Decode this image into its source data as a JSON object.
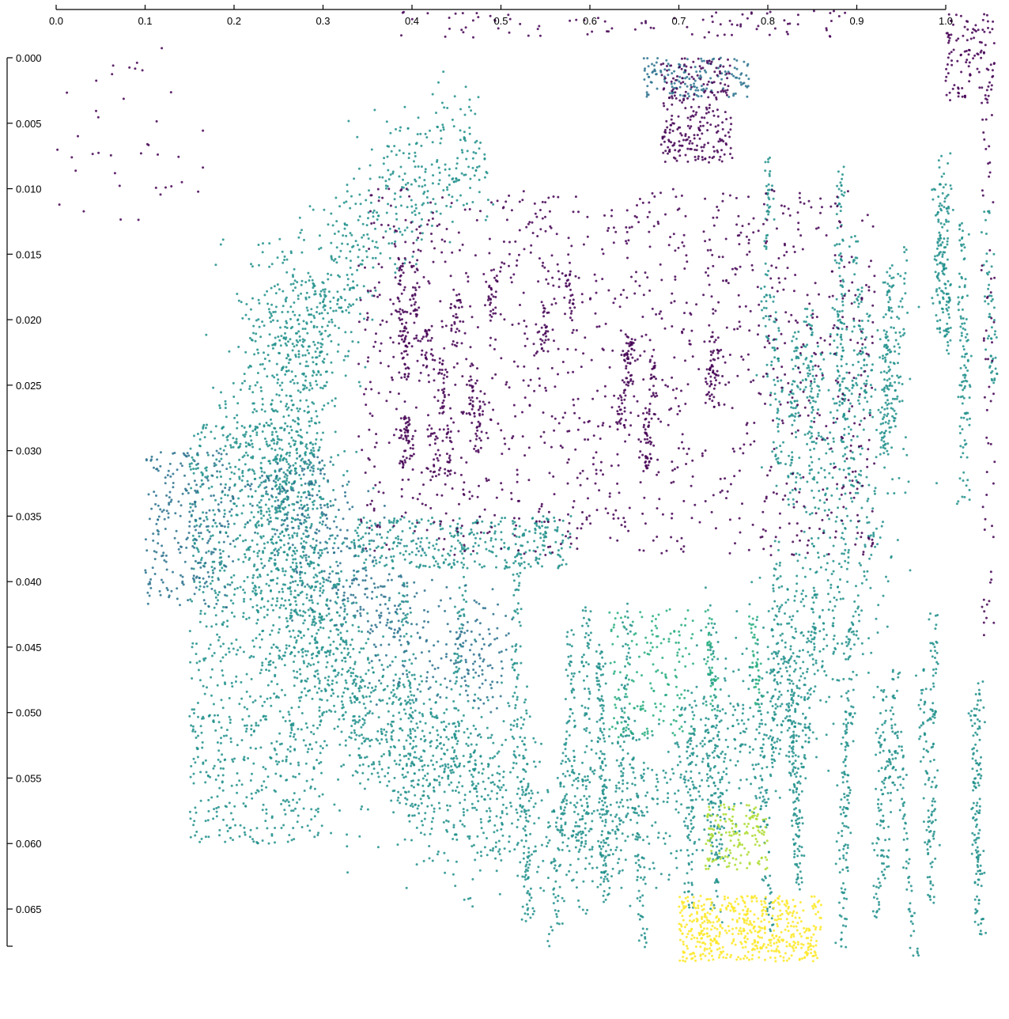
{
  "chart_data": {
    "type": "scatter",
    "title": "",
    "xlabel": "",
    "ylabel": "",
    "x_axis_position": "top",
    "y_axis_inverted": true,
    "xlim": [
      0.0,
      1.055
    ],
    "ylim": [
      -0.0038,
      0.0697
    ],
    "x_ticks": [
      "0.0",
      "0.1",
      "0.2",
      "0.3",
      "0.4",
      "0.5",
      "0.6",
      "0.7",
      "0.8",
      "0.9",
      "1.0"
    ],
    "y_ticks": [
      "0.000",
      "0.005",
      "0.010",
      "0.015",
      "0.020",
      "0.025",
      "0.030",
      "0.035",
      "0.040",
      "0.045",
      "0.050",
      "0.055",
      "0.060",
      "0.065"
    ],
    "grid": false,
    "legend": "none",
    "colormap": "viridis",
    "colors": {
      "dark": "#440154",
      "purple": "#472d7b",
      "blue": "#3b528b",
      "teal_blue": "#2c728e",
      "teal": "#21918c",
      "green": "#28ae80",
      "light_green": "#5ec962",
      "lime": "#addc30",
      "yellow": "#fde725"
    },
    "series": [
      {
        "color": "#21918c",
        "clusters": [
          {
            "shape": "arc",
            "cx": 0.565,
            "cy": 0.0305,
            "rx": 0.325,
            "ry": 0.0285,
            "a0": 150,
            "a1": 380,
            "spread": 0.006,
            "n": 2200
          },
          {
            "shape": "arc",
            "cx": 0.53,
            "cy": 0.0305,
            "rx": 0.27,
            "ry": 0.024,
            "a0": 100,
            "a1": 265,
            "spread": 0.005,
            "n": 1300
          },
          {
            "shape": "streaks",
            "x0": 0.33,
            "x1": 1.05,
            "y0": 0.036,
            "y1": 0.069,
            "len": 0.018,
            "count": 28,
            "n": 2000
          },
          {
            "shape": "streaks",
            "x0": 0.78,
            "x1": 1.05,
            "y0": 0.004,
            "y1": 0.035,
            "len": 0.014,
            "count": 16,
            "n": 900
          },
          {
            "shape": "box",
            "x0": 0.15,
            "x1": 0.3,
            "y0": 0.028,
            "y1": 0.06,
            "n": 900
          },
          {
            "shape": "box",
            "x0": 0.33,
            "x1": 0.58,
            "y0": 0.035,
            "y1": 0.039,
            "n": 350
          }
        ]
      },
      {
        "color": "#2c728e",
        "clusters": [
          {
            "shape": "arc",
            "cx": 0.56,
            "cy": 0.025,
            "rx": 0.31,
            "ry": 0.022,
            "a0": 195,
            "a1": 260,
            "spread": 0.004,
            "n": 500
          },
          {
            "shape": "box",
            "x0": 0.1,
            "x1": 0.2,
            "y0": 0.03,
            "y1": 0.042,
            "n": 260
          },
          {
            "shape": "box",
            "x0": 0.66,
            "x1": 0.78,
            "y0": 0.0,
            "y1": 0.003,
            "n": 150
          }
        ]
      },
      {
        "color": "#440154",
        "clusters": [
          {
            "shape": "box",
            "x0": 0.34,
            "x1": 0.92,
            "y0": 0.01,
            "y1": 0.038,
            "n": 1300
          },
          {
            "shape": "streaks",
            "x0": 0.38,
            "x1": 0.75,
            "y0": 0.014,
            "y1": 0.033,
            "len": 0.004,
            "count": 24,
            "n": 600
          },
          {
            "shape": "box",
            "x0": 0.68,
            "x1": 0.76,
            "y0": 0.0,
            "y1": 0.008,
            "n": 260
          },
          {
            "shape": "box",
            "x0": 0.0,
            "x1": 0.17,
            "y0": -0.001,
            "y1": 0.013,
            "n": 40
          },
          {
            "shape": "box",
            "x0": 1.0,
            "x1": 1.055,
            "y0": -0.0035,
            "y1": 0.0035,
            "n": 120
          },
          {
            "shape": "box",
            "x0": 0.38,
            "x1": 0.9,
            "y0": -0.0036,
            "y1": -0.0015,
            "n": 90
          },
          {
            "shape": "box",
            "x0": 1.04,
            "x1": 1.055,
            "y0": 0.004,
            "y1": 0.045,
            "n": 60
          }
        ]
      },
      {
        "color": "#28ae80",
        "clusters": [
          {
            "shape": "box",
            "x0": 0.62,
            "x1": 0.72,
            "y0": 0.042,
            "y1": 0.052,
            "n": 170
          },
          {
            "shape": "streaks",
            "x0": 0.67,
            "x1": 0.8,
            "y0": 0.042,
            "y1": 0.052,
            "len": 0.008,
            "count": 2,
            "n": 90
          }
        ]
      },
      {
        "color": "#addc30",
        "clusters": [
          {
            "shape": "box",
            "x0": 0.73,
            "x1": 0.8,
            "y0": 0.057,
            "y1": 0.062,
            "n": 150
          }
        ]
      },
      {
        "color": "#fde725",
        "clusters": [
          {
            "shape": "box",
            "x0": 0.7,
            "x1": 0.86,
            "y0": 0.064,
            "y1": 0.069,
            "n": 520
          }
        ]
      }
    ]
  }
}
